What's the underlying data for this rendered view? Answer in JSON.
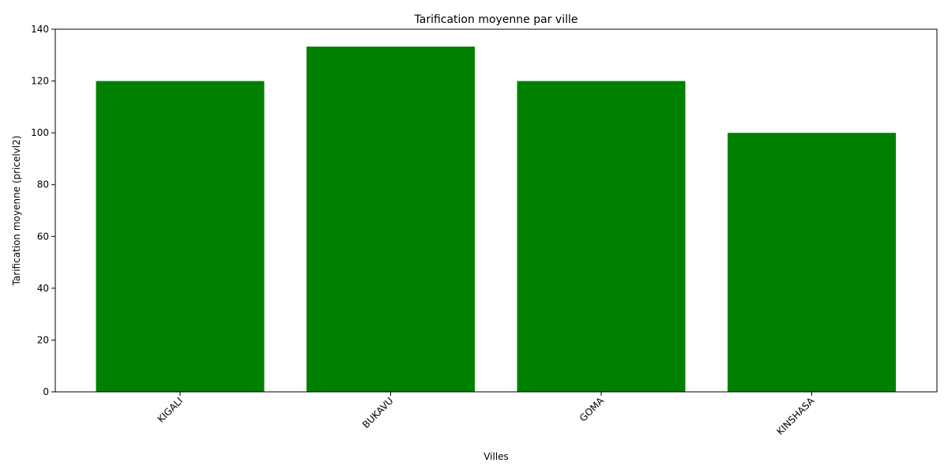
{
  "chart_data": {
    "type": "bar",
    "title": "Tarification moyenne par ville",
    "xlabel": "Villes",
    "ylabel": "Tarification moyenne (pricelvl2)",
    "categories": [
      "KIGALI",
      "BUKAVU",
      "GOMA",
      "KINSHASA"
    ],
    "values": [
      120,
      133.3,
      120,
      100
    ],
    "ylim": [
      0,
      140
    ],
    "yticks": [
      0,
      20,
      40,
      60,
      80,
      100,
      120,
      140
    ],
    "bar_color": "#008000",
    "grid": false,
    "x_tick_rotation_deg": 45
  }
}
